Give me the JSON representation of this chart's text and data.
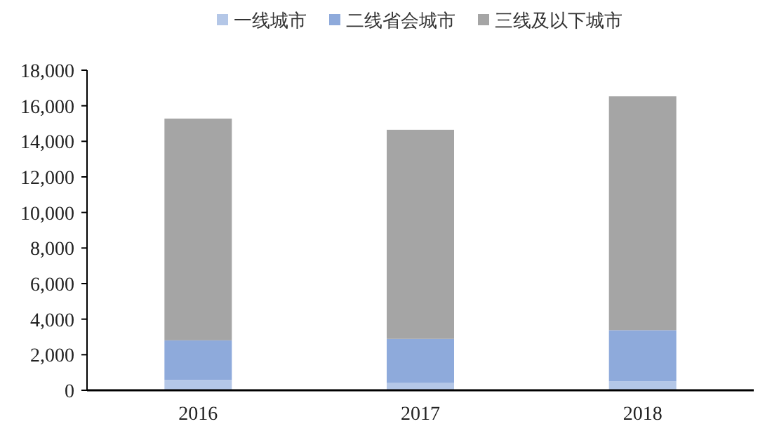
{
  "chart_data": {
    "type": "bar",
    "stacked": true,
    "legend": "top",
    "categories": [
      "2016",
      "2017",
      "2018"
    ],
    "series": [
      {
        "name": "一线城市",
        "color": "#b4c7e7",
        "values": [
          580,
          410,
          500
        ]
      },
      {
        "name": "二线省会城市",
        "color": "#8eaadb",
        "values": [
          2230,
          2480,
          2880
        ]
      },
      {
        "name": "三线及以下城市",
        "color": "#a5a5a5",
        "values": [
          12470,
          11760,
          13150
        ]
      }
    ],
    "ylim": [
      0,
      18000
    ],
    "yticks": [
      {
        "value": 0,
        "label": "0"
      },
      {
        "value": 2000,
        "label": "2,000"
      },
      {
        "value": 4000,
        "label": "4,000"
      },
      {
        "value": 6000,
        "label": "6,000"
      },
      {
        "value": 8000,
        "label": "8,000"
      },
      {
        "value": 10000,
        "label": "10,000"
      },
      {
        "value": 12000,
        "label": "12,000"
      },
      {
        "value": 14000,
        "label": "14,000"
      },
      {
        "value": 16000,
        "label": "16,000"
      },
      {
        "value": 18000,
        "label": "18,000"
      }
    ]
  }
}
